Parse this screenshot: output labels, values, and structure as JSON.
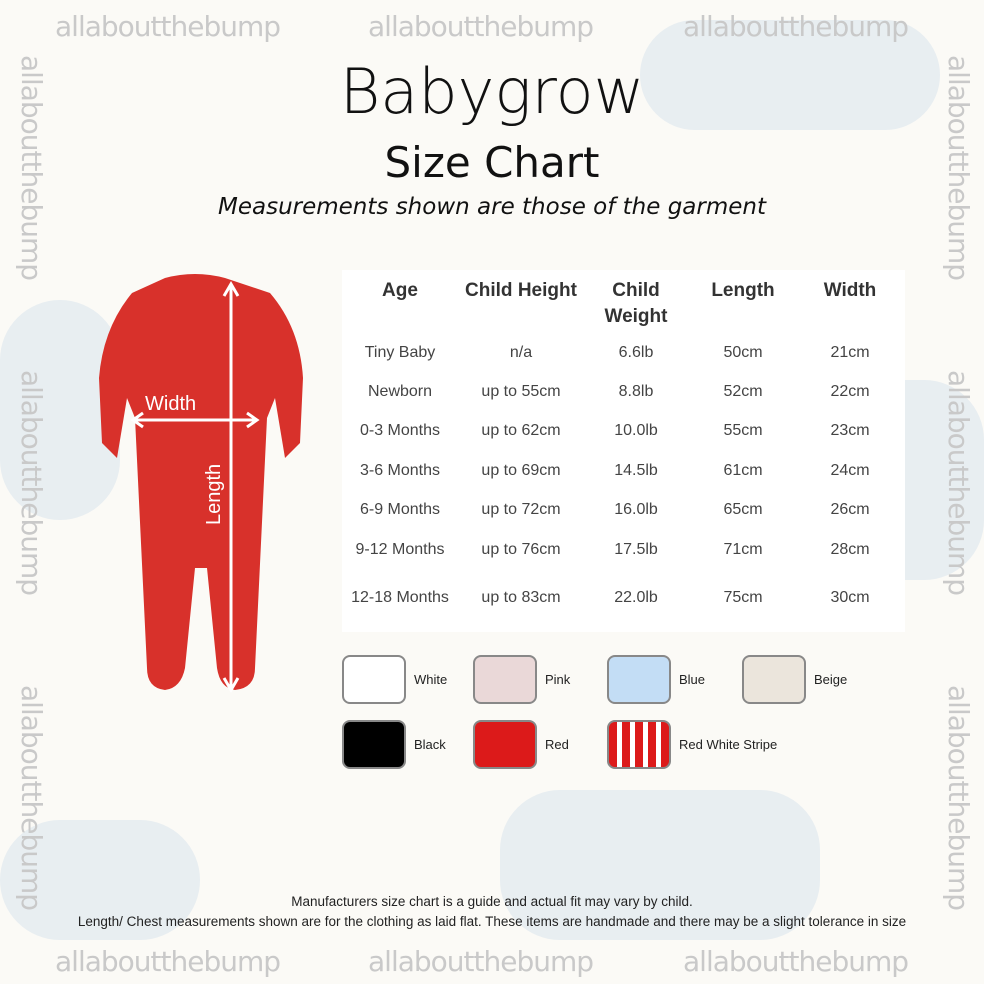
{
  "watermark": "allaboutthebump",
  "title": "Babygrow",
  "subtitle": "Size Chart",
  "tagline": "Measurements shown are those of the garment",
  "garment": {
    "color": "#d8312b",
    "width_label": "Width",
    "length_label": "Length"
  },
  "table": {
    "headers": [
      "Age",
      "Child Height",
      "Child Weight",
      "Length",
      "Width"
    ],
    "rows": [
      [
        "Tiny Baby",
        "n/a",
        "6.6lb",
        "50cm",
        "21cm"
      ],
      [
        "Newborn",
        "up to 55cm",
        "8.8lb",
        "52cm",
        "22cm"
      ],
      [
        "0-3 Months",
        "up to 62cm",
        "10.0lb",
        "55cm",
        "23cm"
      ],
      [
        "3-6 Months",
        "up to 69cm",
        "14.5lb",
        "61cm",
        "24cm"
      ],
      [
        "6-9 Months",
        "up to 72cm",
        "16.0lb",
        "65cm",
        "26cm"
      ],
      [
        "9-12 Months",
        "up to 76cm",
        "17.5lb",
        "71cm",
        "28cm"
      ],
      [
        "12-18 Months",
        "up to 83cm",
        "22.0lb",
        "75cm",
        "30cm"
      ]
    ]
  },
  "colors": [
    {
      "label": "White",
      "hex": "#ffffff"
    },
    {
      "label": "Pink",
      "hex": "#ead8d8"
    },
    {
      "label": "Blue",
      "hex": "#c3ddf5"
    },
    {
      "label": "Beige",
      "hex": "#ebe5dc"
    },
    {
      "label": "Black",
      "hex": "#000000"
    },
    {
      "label": "Red",
      "hex": "#dc1a1a"
    },
    {
      "label": "Red White Stripe",
      "hex": "stripe"
    }
  ],
  "footer": [
    "Manufacturers size chart is a guide and actual fit may vary by child.",
    "Length/ Chest measurements shown are for the clothing as laid flat. These items are handmade and there may be a slight tolerance in size"
  ]
}
